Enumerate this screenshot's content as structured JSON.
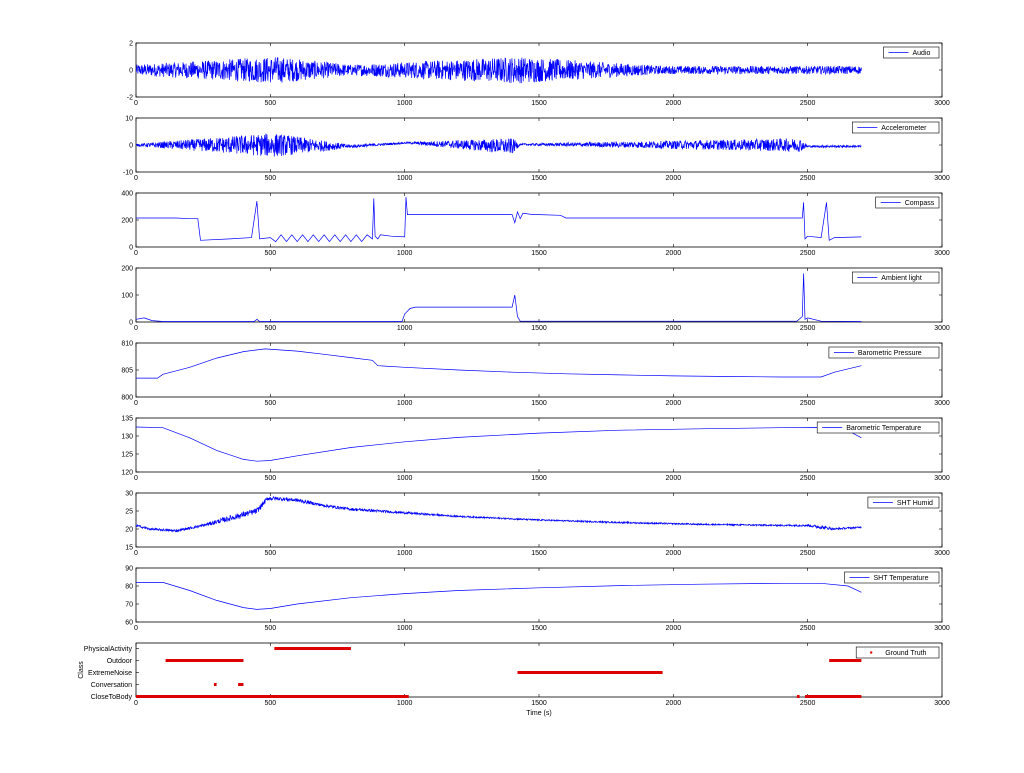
{
  "figure": {
    "x_ticks": [
      0,
      500,
      1000,
      1500,
      2000,
      2500,
      3000
    ],
    "x_range": [
      0,
      3000
    ],
    "xlabel": "Time (s)"
  },
  "colors": {
    "signal": "#0000ff",
    "truth": "#dd0000",
    "axis": "#000000",
    "background": "#ffffff"
  },
  "chart_data": [
    {
      "type": "line",
      "legend": "Audio",
      "ylim": [
        -2,
        2
      ],
      "yticks": [
        -2,
        0,
        2
      ],
      "series": [
        {
          "name": "Audio",
          "kind": "noise",
          "x": [
            0,
            520,
            800,
            1420,
            1960,
            2700
          ],
          "center": [
            0,
            0,
            0,
            0,
            0,
            0
          ],
          "amplitude": [
            0.4,
            1.0,
            0.4,
            1.0,
            0.3,
            0.3
          ]
        }
      ]
    },
    {
      "type": "line",
      "legend": "Accelerometer",
      "ylim": [
        -10,
        10
      ],
      "yticks": [
        -10,
        0,
        10
      ],
      "series": [
        {
          "name": "Accelerometer",
          "kind": "noise",
          "x": [
            0,
            510,
            800,
            1010,
            1400,
            1430,
            2470,
            2500,
            2700
          ],
          "center": [
            0,
            0,
            -0.5,
            0.8,
            -0.5,
            0.2,
            0,
            -0.5,
            -0.5
          ],
          "amplitude": [
            0.4,
            4.5,
            0.6,
            0.3,
            3.0,
            0.3,
            2.5,
            0.4,
            0.4
          ]
        }
      ]
    },
    {
      "type": "line",
      "legend": "Compass",
      "ylim": [
        0,
        400
      ],
      "yticks": [
        0,
        200,
        400
      ],
      "series": [
        {
          "name": "Compass",
          "x": [
            0,
            150,
            200,
            230,
            240,
            350,
            430,
            450,
            460,
            500,
            520,
            540,
            560,
            580,
            600,
            620,
            640,
            660,
            680,
            700,
            720,
            740,
            760,
            780,
            800,
            820,
            840,
            860,
            880,
            885,
            890,
            900,
            910,
            950,
            1000,
            1005,
            1010,
            1020,
            1400,
            1410,
            1420,
            1430,
            1440,
            1480,
            1500,
            1580,
            1600,
            1700,
            2000,
            2300,
            2480,
            2485,
            2490,
            2500,
            2550,
            2570,
            2580,
            2600,
            2700
          ],
          "y": [
            215,
            215,
            210,
            210,
            50,
            60,
            70,
            340,
            60,
            70,
            40,
            90,
            40,
            90,
            40,
            90,
            40,
            90,
            40,
            90,
            40,
            90,
            40,
            90,
            40,
            90,
            40,
            90,
            60,
            360,
            80,
            60,
            90,
            80,
            75,
            370,
            240,
            240,
            240,
            180,
            260,
            210,
            250,
            240,
            240,
            235,
            215,
            215,
            215,
            215,
            215,
            330,
            60,
            80,
            70,
            330,
            50,
            70,
            75
          ]
        }
      ]
    },
    {
      "type": "line",
      "legend": "Ambient light",
      "ylim": [
        0,
        200
      ],
      "yticks": [
        0,
        100,
        200
      ],
      "series": [
        {
          "name": "Ambient light",
          "x": [
            0,
            30,
            60,
            100,
            440,
            450,
            460,
            900,
            990,
            1000,
            1010,
            1020,
            1040,
            1400,
            1410,
            1420,
            1430,
            2460,
            2480,
            2485,
            2490,
            2500,
            2550,
            2700
          ],
          "y": [
            10,
            15,
            5,
            2,
            2,
            10,
            2,
            2,
            2,
            30,
            40,
            50,
            55,
            55,
            100,
            20,
            3,
            3,
            20,
            180,
            10,
            15,
            3,
            2
          ]
        }
      ]
    },
    {
      "type": "line",
      "legend": "Barometric Pressure",
      "ylim": [
        800,
        810
      ],
      "yticks": [
        800,
        805,
        810
      ],
      "series": [
        {
          "name": "Barometric Pressure",
          "x": [
            0,
            80,
            100,
            200,
            300,
            400,
            480,
            600,
            700,
            800,
            880,
            900,
            1000,
            1200,
            1400,
            1600,
            1800,
            2000,
            2200,
            2400,
            2550,
            2600,
            2700
          ],
          "y": [
            803.5,
            803.5,
            804.2,
            805.5,
            807.2,
            808.4,
            808.9,
            808.5,
            807.9,
            807.3,
            806.8,
            805.8,
            805.5,
            805.0,
            804.6,
            804.3,
            804.1,
            803.9,
            803.8,
            803.7,
            803.7,
            804.6,
            805.8
          ]
        }
      ]
    },
    {
      "type": "line",
      "legend": "Barometric Temperature",
      "ylim": [
        120,
        135
      ],
      "yticks": [
        120,
        125,
        130,
        135
      ],
      "series": [
        {
          "name": "Barometric Temperature",
          "x": [
            0,
            100,
            200,
            300,
            400,
            450,
            500,
            600,
            800,
            1000,
            1200,
            1500,
            1800,
            2100,
            2400,
            2550,
            2650,
            2700
          ],
          "y": [
            132.5,
            132.3,
            129.5,
            126.0,
            123.5,
            123.0,
            123.2,
            124.5,
            126.8,
            128.4,
            129.6,
            130.8,
            131.6,
            132.0,
            132.3,
            132.4,
            131.5,
            129.5
          ]
        }
      ]
    },
    {
      "type": "line",
      "legend": "SHT Humid",
      "ylim": [
        15,
        30
      ],
      "yticks": [
        15,
        20,
        25,
        30
      ],
      "series": [
        {
          "name": "SHT Humid",
          "kind": "noise",
          "x": [
            0,
            50,
            150,
            250,
            350,
            450,
            490,
            520,
            600,
            700,
            800,
            1000,
            1200,
            1500,
            1800,
            2100,
            2400,
            2500,
            2550,
            2600,
            2700
          ],
          "center": [
            21,
            20,
            19.5,
            21,
            23,
            25,
            28.5,
            28.5,
            28,
            26.5,
            25.5,
            24.5,
            23.5,
            22.5,
            21.8,
            21.3,
            21,
            21,
            20.5,
            20,
            20.5
          ],
          "amplitude": [
            0.3,
            0.3,
            0.3,
            0.4,
            0.8,
            0.8,
            0.6,
            0.5,
            0.5,
            0.4,
            0.4,
            0.3,
            0.2,
            0.2,
            0.2,
            0.2,
            0.2,
            0.3,
            0.5,
            0.3,
            0.2
          ]
        }
      ]
    },
    {
      "type": "line",
      "legend": "SHT Temperature",
      "ylim": [
        60,
        90
      ],
      "yticks": [
        60,
        70,
        80,
        90
      ],
      "series": [
        {
          "name": "SHT Temperature",
          "x": [
            0,
            100,
            200,
            300,
            400,
            450,
            500,
            600,
            800,
            1000,
            1200,
            1500,
            1800,
            2100,
            2400,
            2550,
            2650,
            2700
          ],
          "y": [
            82,
            82,
            77.5,
            72,
            68,
            67,
            67.5,
            70,
            73.5,
            75.8,
            77.5,
            79,
            80.2,
            81,
            81.5,
            81.5,
            80,
            76.5
          ]
        }
      ]
    },
    {
      "type": "scatter",
      "legend": "Ground Truth",
      "ylabel": "Class",
      "categories": [
        "PhysicalActivity",
        "Outdoor",
        "ExtremeNoise",
        "Conversation",
        "CloseToBody"
      ],
      "segments": [
        {
          "class": "PhysicalActivity",
          "start": 515,
          "end": 800
        },
        {
          "class": "Outdoor",
          "start": 110,
          "end": 400
        },
        {
          "class": "Outdoor",
          "start": 2580,
          "end": 2700
        },
        {
          "class": "ExtremeNoise",
          "start": 1420,
          "end": 1960
        },
        {
          "class": "Conversation",
          "start": 290,
          "end": 300
        },
        {
          "class": "Conversation",
          "start": 380,
          "end": 400
        },
        {
          "class": "CloseToBody",
          "start": 0,
          "end": 1015
        },
        {
          "class": "CloseToBody",
          "start": 2460,
          "end": 2470
        },
        {
          "class": "CloseToBody",
          "start": 2490,
          "end": 2700
        }
      ]
    }
  ]
}
